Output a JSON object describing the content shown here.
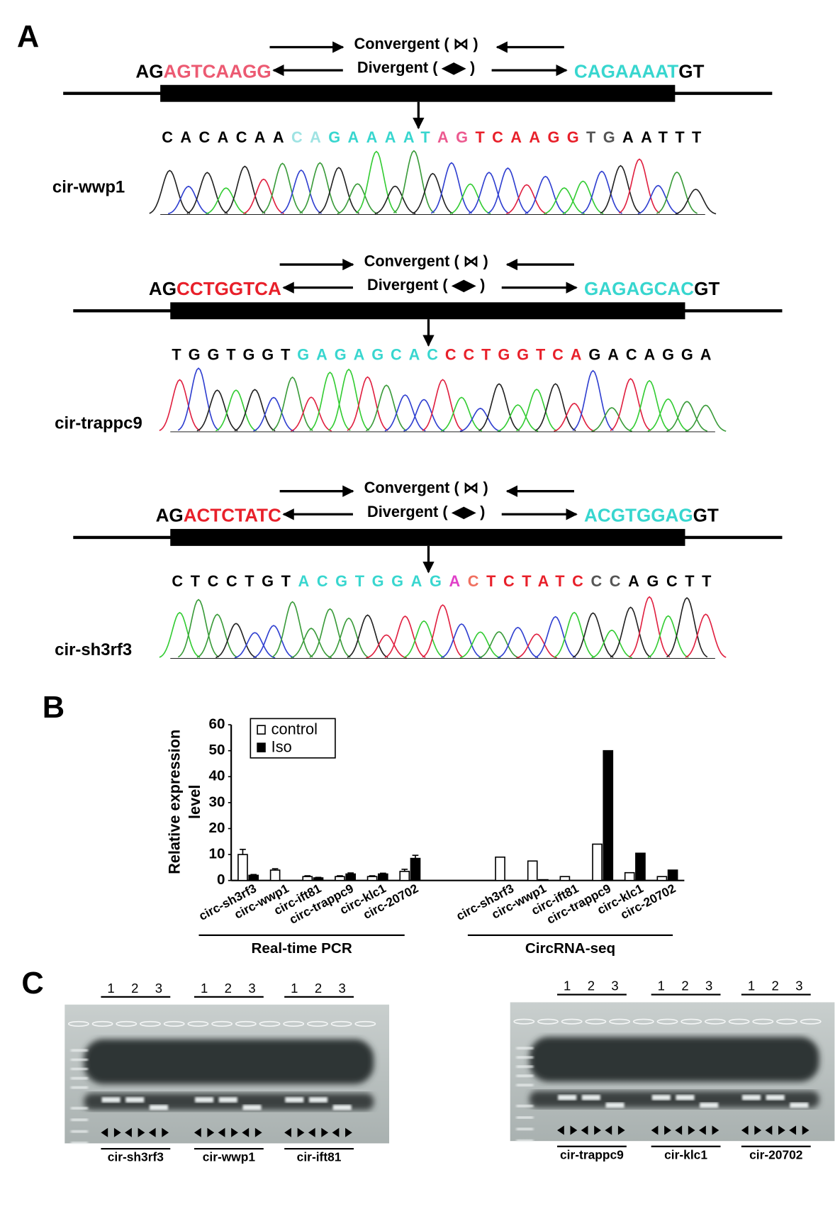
{
  "panels": {
    "A": {
      "label": "A",
      "constructs": [
        {
          "name": "cir-wwp1",
          "convergent": "Convergent ( ⋈ )",
          "divergent": "Divergent ( ◀▶ )",
          "left": [
            {
              "text": "AG",
              "color": "#000000"
            },
            {
              "text": "AGTCAAGG",
              "color": "#ec5a72"
            }
          ],
          "right": [
            {
              "text": "CAGAAAAT",
              "color": "#38d6cf"
            },
            {
              "text": "GT",
              "color": "#000000"
            }
          ],
          "sequence": [
            {
              "text": "CACACAA",
              "color": "#000000"
            },
            {
              "text": "CA",
              "color": "#9fe3e3"
            },
            {
              "text": "GAAAAT",
              "color": "#38d6cf"
            },
            {
              "text": "AG",
              "color": "#ec5a90"
            },
            {
              "text": "TCAAGG",
              "color": "#e8202a"
            },
            {
              "text": "TG",
              "color": "#555555"
            },
            {
              "text": "AATTT",
              "color": "#000000"
            }
          ]
        },
        {
          "name": "cir-trappc9",
          "convergent": "Convergent ( ⋈ )",
          "divergent": "Divergent ( ◀▶ )",
          "left": [
            {
              "text": "AG",
              "color": "#000000"
            },
            {
              "text": "CCTGGTCA",
              "color": "#e8202a"
            }
          ],
          "right": [
            {
              "text": "GAGAGCAC",
              "color": "#38d6cf"
            },
            {
              "text": "GT",
              "color": "#000000"
            }
          ],
          "sequence": [
            {
              "text": "TGGTGGT",
              "color": "#000000"
            },
            {
              "text": "GAGAGCAC",
              "color": "#38d6cf"
            },
            {
              "text": "CCTGGTCA",
              "color": "#e8202a"
            },
            {
              "text": "GACAGGA",
              "color": "#000000"
            }
          ]
        },
        {
          "name": "cir-sh3rf3",
          "convergent": "Convergent ( ⋈ )",
          "divergent": "Divergent ( ◀▶ )",
          "left": [
            {
              "text": "AG",
              "color": "#000000"
            },
            {
              "text": "ACTCTATC",
              "color": "#e8202a"
            }
          ],
          "right": [
            {
              "text": "ACGTGGAG",
              "color": "#38d6cf"
            },
            {
              "text": "GT",
              "color": "#000000"
            }
          ],
          "sequence": [
            {
              "text": "CTCCTGT",
              "color": "#000000"
            },
            {
              "text": "ACGTGGAG",
              "color": "#38d6cf"
            },
            {
              "text": "A",
              "color": "#e040c8"
            },
            {
              "text": "C",
              "color": "#f07060"
            },
            {
              "text": "TCTATC",
              "color": "#e8202a"
            },
            {
              "text": "CC",
              "color": "#555555"
            },
            {
              "text": "AGCTT",
              "color": "#000000"
            }
          ]
        }
      ]
    },
    "B": {
      "label": "B"
    },
    "C": {
      "label": "C",
      "gels": [
        {
          "groups": [
            {
              "lanes": [
                "1",
                "2",
                "3"
              ],
              "name": "cir-sh3rf3"
            },
            {
              "lanes": [
                "1",
                "2",
                "3"
              ],
              "name": "cir-wwp1"
            },
            {
              "lanes": [
                "1",
                "2",
                "3"
              ],
              "name": "cir-ift81"
            }
          ]
        },
        {
          "groups": [
            {
              "lanes": [
                "1",
                "2",
                "3"
              ],
              "name": "cir-trappc9"
            },
            {
              "lanes": [
                "1",
                "2",
                "3"
              ],
              "name": "cir-klc1"
            },
            {
              "lanes": [
                "1",
                "2",
                "3"
              ],
              "name": "cir-20702"
            }
          ]
        }
      ]
    }
  },
  "chart_data": {
    "type": "bar",
    "ylabel": [
      "Relative expression",
      "level"
    ],
    "categories": [
      "circ-sh3rf3",
      "circ-wwp1",
      "circ-ift81",
      "circ-trappc9",
      "circ-klc1",
      "circ-20702",
      "circ-sh3rf3",
      "circ-wwp1",
      "circ-ift81",
      "circ-trappc9",
      "circ-klc1",
      "circ-20702"
    ],
    "group_labels": [
      "Real-time PCR",
      "CircRNA-seq"
    ],
    "series": [
      {
        "name": "control",
        "color": "#ffffff",
        "values": [
          10,
          4,
          1.5,
          1.5,
          1.5,
          3.5,
          9,
          7.5,
          1.5,
          14,
          3,
          1.5
        ],
        "errors": [
          2,
          0.5,
          0.3,
          0.3,
          0.3,
          0.8,
          null,
          null,
          null,
          null,
          null,
          null
        ]
      },
      {
        "name": "Iso",
        "color": "#000000",
        "values": [
          2,
          0,
          1,
          2.5,
          2.5,
          8.5,
          0,
          0.3,
          0,
          50,
          10.5,
          4
        ],
        "errors": [
          0.3,
          null,
          0.2,
          0.4,
          0.3,
          1.2,
          null,
          null,
          null,
          null,
          null,
          null
        ]
      }
    ],
    "ylim": [
      0,
      60
    ],
    "yticks": [
      0,
      10,
      20,
      30,
      40,
      50,
      60
    ],
    "legend": "top-left"
  }
}
